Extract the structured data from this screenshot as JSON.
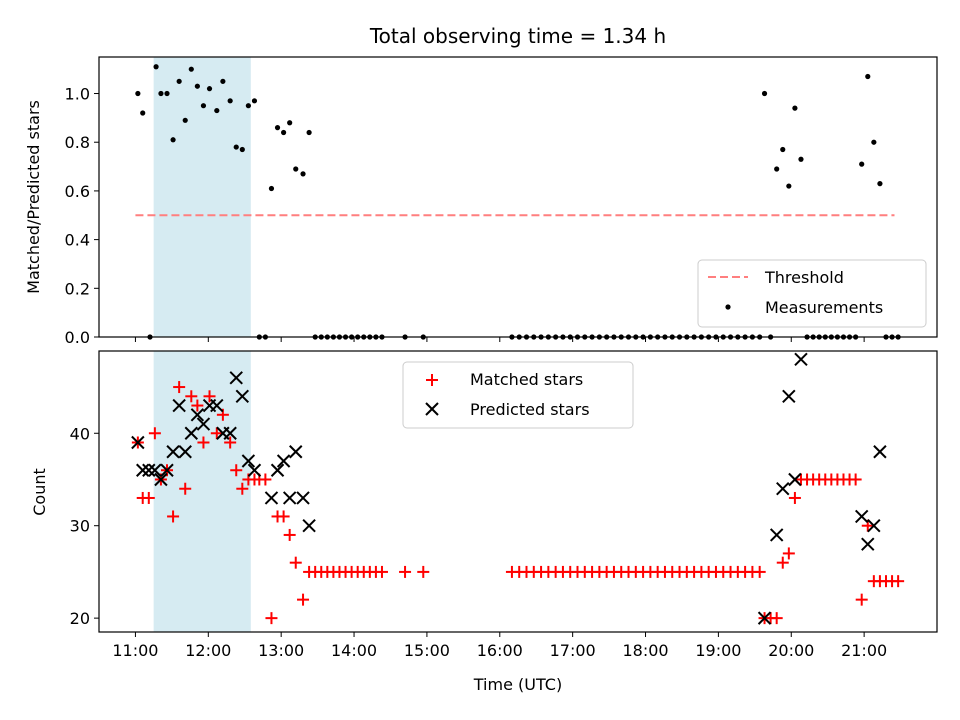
{
  "chart_data": [
    {
      "type": "scatter",
      "title": "Total observing time = 1.34 h",
      "xlabel": "",
      "ylabel": "Matched/Predicted stars",
      "xlim": [
        "10:30",
        "22:00"
      ],
      "ylim": [
        0,
        1.15
      ],
      "yticks": [
        "0.0",
        "0.2",
        "0.4",
        "0.6",
        "0.8",
        "1.0"
      ],
      "shaded_region": {
        "from": "11:15",
        "to": "12:35",
        "color": "#add8e6"
      },
      "threshold": {
        "name": "Threshold",
        "value": 0.5,
        "from": "11:00",
        "to": "21:25",
        "color": "#ff7f7f"
      },
      "legend": {
        "position": "lower right",
        "entries": [
          "Threshold",
          "Measurements"
        ]
      },
      "series": [
        {
          "name": "Measurements",
          "marker": "dot",
          "color": "#000000",
          "points": [
            [
              "11:02",
              1.0
            ],
            [
              "11:06",
              0.92
            ],
            [
              "11:12",
              0.0
            ],
            [
              "11:17",
              1.11
            ],
            [
              "11:21",
              1.0
            ],
            [
              "11:26",
              1.0
            ],
            [
              "11:31",
              0.81
            ],
            [
              "11:36",
              1.05
            ],
            [
              "11:41",
              0.89
            ],
            [
              "11:46",
              1.1
            ],
            [
              "11:51",
              1.03
            ],
            [
              "11:56",
              0.95
            ],
            [
              "12:01",
              1.02
            ],
            [
              "12:07",
              0.93
            ],
            [
              "12:12",
              1.05
            ],
            [
              "12:18",
              0.97
            ],
            [
              "12:23",
              0.78
            ],
            [
              "12:28",
              0.77
            ],
            [
              "12:33",
              0.95
            ],
            [
              "12:38",
              0.97
            ],
            [
              "12:42",
              0.0
            ],
            [
              "12:47",
              0.0
            ],
            [
              "12:52",
              0.61
            ],
            [
              "12:57",
              0.86
            ],
            [
              "13:02",
              0.84
            ],
            [
              "13:07",
              0.88
            ],
            [
              "13:12",
              0.69
            ],
            [
              "13:18",
              0.67
            ],
            [
              "13:23",
              0.84
            ],
            [
              "13:28",
              0.0
            ],
            [
              "13:33",
              0.0
            ],
            [
              "13:38",
              0.0
            ],
            [
              "13:43",
              0.0
            ],
            [
              "13:48",
              0.0
            ],
            [
              "13:53",
              0.0
            ],
            [
              "13:58",
              0.0
            ],
            [
              "14:03",
              0.0
            ],
            [
              "14:08",
              0.0
            ],
            [
              "14:13",
              0.0
            ],
            [
              "14:18",
              0.0
            ],
            [
              "14:23",
              0.0
            ],
            [
              "14:42",
              0.0
            ],
            [
              "14:57",
              0.0
            ],
            [
              "16:10",
              0.0
            ],
            [
              "16:16",
              0.0
            ],
            [
              "16:22",
              0.0
            ],
            [
              "16:28",
              0.0
            ],
            [
              "16:34",
              0.0
            ],
            [
              "16:40",
              0.0
            ],
            [
              "16:46",
              0.0
            ],
            [
              "16:52",
              0.0
            ],
            [
              "16:58",
              0.0
            ],
            [
              "17:04",
              0.0
            ],
            [
              "17:10",
              0.0
            ],
            [
              "17:16",
              0.0
            ],
            [
              "17:22",
              0.0
            ],
            [
              "17:28",
              0.0
            ],
            [
              "17:34",
              0.0
            ],
            [
              "17:40",
              0.0
            ],
            [
              "17:46",
              0.0
            ],
            [
              "17:52",
              0.0
            ],
            [
              "17:58",
              0.0
            ],
            [
              "18:04",
              0.0
            ],
            [
              "18:10",
              0.0
            ],
            [
              "18:16",
              0.0
            ],
            [
              "18:22",
              0.0
            ],
            [
              "18:28",
              0.0
            ],
            [
              "18:34",
              0.0
            ],
            [
              "18:40",
              0.0
            ],
            [
              "18:46",
              0.0
            ],
            [
              "18:52",
              0.0
            ],
            [
              "18:58",
              0.0
            ],
            [
              "19:04",
              0.0
            ],
            [
              "19:10",
              0.0
            ],
            [
              "19:16",
              0.0
            ],
            [
              "19:22",
              0.0
            ],
            [
              "19:28",
              0.0
            ],
            [
              "19:34",
              0.0
            ],
            [
              "19:38",
              1.0
            ],
            [
              "19:43",
              0.0
            ],
            [
              "19:48",
              0.69
            ],
            [
              "19:53",
              0.77
            ],
            [
              "19:58",
              0.62
            ],
            [
              "20:03",
              0.94
            ],
            [
              "20:08",
              0.73
            ],
            [
              "20:13",
              0.0
            ],
            [
              "20:18",
              0.0
            ],
            [
              "20:23",
              0.0
            ],
            [
              "20:28",
              0.0
            ],
            [
              "20:33",
              0.0
            ],
            [
              "20:38",
              0.0
            ],
            [
              "20:43",
              0.0
            ],
            [
              "20:48",
              0.0
            ],
            [
              "20:53",
              0.0
            ],
            [
              "20:58",
              0.71
            ],
            [
              "21:03",
              1.07
            ],
            [
              "21:08",
              0.8
            ],
            [
              "21:13",
              0.63
            ],
            [
              "21:18",
              0.0
            ],
            [
              "21:23",
              0.0
            ],
            [
              "21:28",
              0.0
            ]
          ]
        }
      ]
    },
    {
      "type": "scatter",
      "title": "",
      "xlabel": "Time (UTC)",
      "ylabel": "Count",
      "xlim": [
        "10:30",
        "22:00"
      ],
      "ylim": [
        18.5,
        48.9
      ],
      "xticks": [
        "11:00",
        "12:00",
        "13:00",
        "14:00",
        "15:00",
        "16:00",
        "17:00",
        "18:00",
        "19:00",
        "20:00",
        "21:00"
      ],
      "yticks": [
        "20",
        "30",
        "40"
      ],
      "shaded_region": {
        "from": "11:15",
        "to": "12:35",
        "color": "#add8e6"
      },
      "legend": {
        "position": "upper center",
        "entries": [
          "Matched stars",
          "Predicted stars"
        ]
      },
      "series": [
        {
          "name": "Matched stars",
          "marker": "plus",
          "color": "#ff0000",
          "points": [
            [
              "11:02",
              39
            ],
            [
              "11:06",
              33
            ],
            [
              "11:11",
              33
            ],
            [
              "11:16",
              40
            ],
            [
              "11:21",
              35
            ],
            [
              "11:26",
              36
            ],
            [
              "11:31",
              31
            ],
            [
              "11:36",
              45
            ],
            [
              "11:41",
              34
            ],
            [
              "11:46",
              44
            ],
            [
              "11:51",
              43
            ],
            [
              "11:56",
              39
            ],
            [
              "12:01",
              44
            ],
            [
              "12:07",
              40
            ],
            [
              "12:12",
              42
            ],
            [
              "12:18",
              39
            ],
            [
              "12:23",
              36
            ],
            [
              "12:28",
              34
            ],
            [
              "12:33",
              35
            ],
            [
              "12:38",
              35
            ],
            [
              "12:42",
              35
            ],
            [
              "12:47",
              35
            ],
            [
              "12:52",
              20
            ],
            [
              "12:57",
              31
            ],
            [
              "13:02",
              31
            ],
            [
              "13:07",
              29
            ],
            [
              "13:12",
              26
            ],
            [
              "13:18",
              22
            ],
            [
              "13:23",
              25
            ],
            [
              "13:28",
              25
            ],
            [
              "13:33",
              25
            ],
            [
              "13:38",
              25
            ],
            [
              "13:43",
              25
            ],
            [
              "13:48",
              25
            ],
            [
              "13:53",
              25
            ],
            [
              "13:58",
              25
            ],
            [
              "14:03",
              25
            ],
            [
              "14:08",
              25
            ],
            [
              "14:13",
              25
            ],
            [
              "14:18",
              25
            ],
            [
              "14:23",
              25
            ],
            [
              "14:42",
              25
            ],
            [
              "14:57",
              25
            ],
            [
              "16:10",
              25
            ],
            [
              "16:16",
              25
            ],
            [
              "16:22",
              25
            ],
            [
              "16:28",
              25
            ],
            [
              "16:34",
              25
            ],
            [
              "16:40",
              25
            ],
            [
              "16:46",
              25
            ],
            [
              "16:52",
              25
            ],
            [
              "16:58",
              25
            ],
            [
              "17:04",
              25
            ],
            [
              "17:10",
              25
            ],
            [
              "17:16",
              25
            ],
            [
              "17:22",
              25
            ],
            [
              "17:28",
              25
            ],
            [
              "17:34",
              25
            ],
            [
              "17:40",
              25
            ],
            [
              "17:46",
              25
            ],
            [
              "17:52",
              25
            ],
            [
              "17:58",
              25
            ],
            [
              "18:04",
              25
            ],
            [
              "18:10",
              25
            ],
            [
              "18:16",
              25
            ],
            [
              "18:22",
              25
            ],
            [
              "18:28",
              25
            ],
            [
              "18:34",
              25
            ],
            [
              "18:40",
              25
            ],
            [
              "18:46",
              25
            ],
            [
              "18:52",
              25
            ],
            [
              "18:58",
              25
            ],
            [
              "19:04",
              25
            ],
            [
              "19:10",
              25
            ],
            [
              "19:16",
              25
            ],
            [
              "19:22",
              25
            ],
            [
              "19:28",
              25
            ],
            [
              "19:34",
              25
            ],
            [
              "19:38",
              20
            ],
            [
              "19:43",
              20
            ],
            [
              "19:48",
              20
            ],
            [
              "19:53",
              26
            ],
            [
              "19:58",
              27
            ],
            [
              "20:03",
              33
            ],
            [
              "20:08",
              35
            ],
            [
              "20:13",
              35
            ],
            [
              "20:18",
              35
            ],
            [
              "20:23",
              35
            ],
            [
              "20:28",
              35
            ],
            [
              "20:33",
              35
            ],
            [
              "20:38",
              35
            ],
            [
              "20:43",
              35
            ],
            [
              "20:48",
              35
            ],
            [
              "20:53",
              35
            ],
            [
              "20:58",
              22
            ],
            [
              "21:03",
              30
            ],
            [
              "21:08",
              24
            ],
            [
              "21:13",
              24
            ],
            [
              "21:18",
              24
            ],
            [
              "21:23",
              24
            ],
            [
              "21:28",
              24
            ]
          ]
        },
        {
          "name": "Predicted stars",
          "marker": "x",
          "color": "#000000",
          "points": [
            [
              "11:02",
              39
            ],
            [
              "11:06",
              36
            ],
            [
              "11:11",
              36
            ],
            [
              "11:16",
              36
            ],
            [
              "11:21",
              35
            ],
            [
              "11:26",
              36
            ],
            [
              "11:31",
              38
            ],
            [
              "11:36",
              43
            ],
            [
              "11:41",
              38
            ],
            [
              "11:46",
              40
            ],
            [
              "11:51",
              42
            ],
            [
              "11:56",
              41
            ],
            [
              "12:01",
              43
            ],
            [
              "12:07",
              43
            ],
            [
              "12:12",
              40
            ],
            [
              "12:18",
              40
            ],
            [
              "12:23",
              46
            ],
            [
              "12:28",
              44
            ],
            [
              "12:33",
              37
            ],
            [
              "12:38",
              36
            ],
            [
              "12:52",
              33
            ],
            [
              "12:57",
              36
            ],
            [
              "13:02",
              37
            ],
            [
              "13:07",
              33
            ],
            [
              "13:12",
              38
            ],
            [
              "13:18",
              33
            ],
            [
              "13:23",
              30
            ],
            [
              "19:38",
              20
            ],
            [
              "19:48",
              29
            ],
            [
              "19:53",
              34
            ],
            [
              "19:58",
              44
            ],
            [
              "20:03",
              35
            ],
            [
              "20:08",
              48
            ],
            [
              "20:58",
              31
            ],
            [
              "21:03",
              28
            ],
            [
              "21:08",
              30
            ],
            [
              "21:13",
              38
            ]
          ]
        }
      ]
    }
  ]
}
